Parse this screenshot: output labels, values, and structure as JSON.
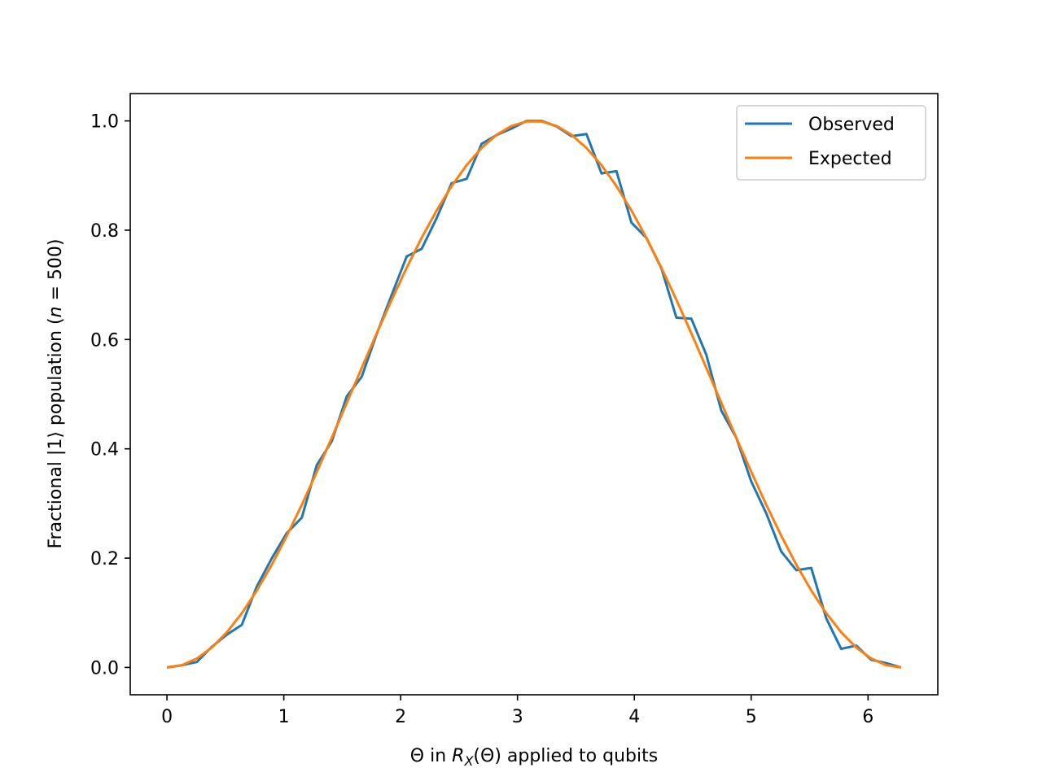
{
  "chart_data": {
    "type": "line",
    "xlabel": "Θ in R_X(Θ) applied to qubits",
    "xlabel_parts": {
      "prefix": "Θ in ",
      "italic_r": "R",
      "subscript": "X",
      "suffix": "(Θ) applied to qubits"
    },
    "ylabel": "Fractional |1⟩ population (n = 500)",
    "ylabel_parts": {
      "prefix": "Fractional |1⟩ population (",
      "italic_n": "n",
      "suffix": " = 500)"
    },
    "xlim": [
      -0.314,
      6.597
    ],
    "ylim": [
      -0.05,
      1.05
    ],
    "xticks": [
      0,
      1,
      2,
      3,
      4,
      5,
      6
    ],
    "yticks": [
      0.0,
      0.2,
      0.4,
      0.6,
      0.8,
      1.0
    ],
    "ytick_labels": [
      "0.0",
      "0.2",
      "0.4",
      "0.6",
      "0.8",
      "1.0"
    ],
    "grid": false,
    "legend_position": "upper right",
    "series": [
      {
        "name": "Observed",
        "color": "#1f77b4",
        "x": [
          0.0,
          0.128,
          0.256,
          0.385,
          0.513,
          0.641,
          0.769,
          0.898,
          1.026,
          1.154,
          1.282,
          1.411,
          1.539,
          1.667,
          1.795,
          1.924,
          2.052,
          2.18,
          2.308,
          2.436,
          2.565,
          2.693,
          2.821,
          2.949,
          3.078,
          3.206,
          3.334,
          3.462,
          3.59,
          3.719,
          3.847,
          3.975,
          4.103,
          4.232,
          4.36,
          4.488,
          4.616,
          4.744,
          4.873,
          5.001,
          5.129,
          5.257,
          5.386,
          5.514,
          5.642,
          5.77,
          5.899,
          6.027,
          6.155,
          6.283
        ],
        "y": [
          0.0,
          0.004,
          0.01,
          0.038,
          0.06,
          0.078,
          0.148,
          0.2,
          0.246,
          0.274,
          0.37,
          0.414,
          0.496,
          0.532,
          0.61,
          0.682,
          0.752,
          0.766,
          0.822,
          0.886,
          0.894,
          0.958,
          0.974,
          0.986,
          1.0,
          1.0,
          0.99,
          0.972,
          0.976,
          0.904,
          0.908,
          0.814,
          0.786,
          0.73,
          0.64,
          0.638,
          0.572,
          0.47,
          0.42,
          0.34,
          0.282,
          0.212,
          0.178,
          0.182,
          0.09,
          0.034,
          0.04,
          0.014,
          0.008,
          0.0
        ]
      },
      {
        "name": "Expected",
        "color": "#ff7f0e",
        "formula": "sin^2(x/2)",
        "samples": 50
      }
    ]
  }
}
